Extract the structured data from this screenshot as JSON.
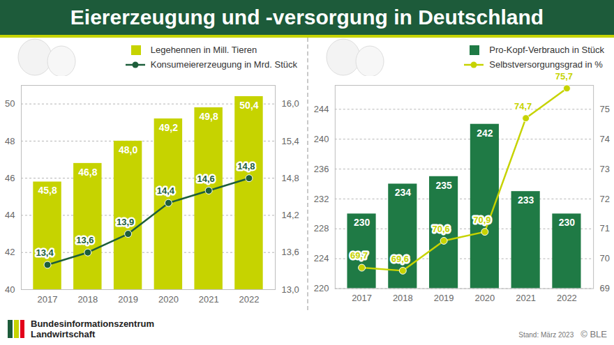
{
  "title": "Eierer­zeugung und -versorgung in Deutschland",
  "chart_data": [
    {
      "type": "bar",
      "categories": [
        "2017",
        "2018",
        "2019",
        "2020",
        "2021",
        "2022"
      ],
      "series": [
        {
          "name": "Legehennen in Mill. Tieren",
          "type": "bar",
          "color": "#c6d300",
          "values": [
            45.8,
            46.8,
            48.0,
            49.2,
            49.8,
            50.4
          ],
          "value_labels": [
            "45,8",
            "46,8",
            "48,0",
            "49,2",
            "49,8",
            "50,4"
          ]
        },
        {
          "name": "Konsumeiererzeugung in Mrd. Stück",
          "type": "line",
          "axis": "y2",
          "color": "#1d5e3b",
          "marker": "circle",
          "values": [
            13.4,
            13.6,
            13.9,
            14.4,
            14.6,
            14.8
          ],
          "value_labels": [
            "13,4",
            "13,6",
            "13,9",
            "14,4",
            "14,6",
            "14,8"
          ]
        }
      ],
      "ylim": [
        40,
        51
      ],
      "yticks": [
        40,
        42,
        44,
        46,
        48,
        50
      ],
      "y2lim": [
        13,
        16.3
      ],
      "y2ticks": [
        {
          "value": 13,
          "label": "13,0"
        },
        {
          "value": 13.6,
          "label": "13,6"
        },
        {
          "value": 14.2,
          "label": "14,2"
        },
        {
          "value": 14.8,
          "label": "14,8"
        },
        {
          "value": 15.4,
          "label": "15,4"
        },
        {
          "value": 16,
          "label": "16,0"
        }
      ],
      "grid": true,
      "data_labels": true,
      "legend": "top-right"
    },
    {
      "type": "bar",
      "categories": [
        "2017",
        "2018",
        "2019",
        "2020",
        "2021",
        "2022"
      ],
      "series": [
        {
          "name": "Pro-Kopf-Verbrauch in Stück",
          "type": "bar",
          "color": "#1f7a45",
          "values": [
            230,
            234,
            235,
            242,
            233,
            230
          ]
        },
        {
          "name": "Selbstversorgungsgrad in %",
          "type": "line",
          "axis": "y2",
          "color": "#c6d300",
          "marker": "circle",
          "values": [
            69.7,
            69.6,
            70.6,
            70.9,
            74.7,
            75.7
          ],
          "value_labels": [
            "69,7",
            "69,6",
            "70,6",
            "70,9",
            "74,7",
            "75,7"
          ]
        }
      ],
      "ylim": [
        220,
        247.2
      ],
      "yticks": [
        220,
        224,
        228,
        232,
        236,
        240,
        244
      ],
      "y2lim": [
        69,
        75.8
      ],
      "y2ticks": [
        69,
        70,
        71,
        72,
        73,
        74,
        75
      ],
      "grid": true,
      "data_labels": true,
      "legend": "top-right"
    }
  ],
  "source": [
    "Bundesinformationszentrum",
    "Landwirtschaft"
  ],
  "date_note": "Stand: März 2023",
  "copyright": "© BLE"
}
